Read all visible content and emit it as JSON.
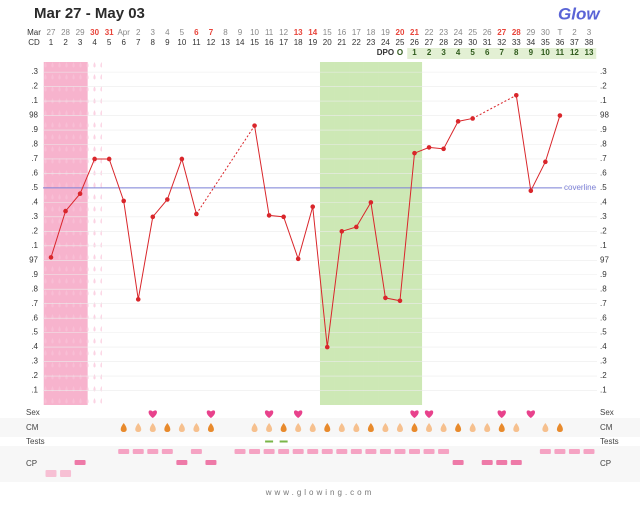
{
  "header": {
    "title": "Mar 27 - May 03",
    "logo": "Glow"
  },
  "chart_data": {
    "type": "line",
    "month_label": "Mar",
    "dates": [
      "27",
      "28",
      "29",
      "30",
      "31",
      "Apr",
      "2",
      "3",
      "4",
      "5",
      "6",
      "7",
      "8",
      "9",
      "10",
      "11",
      "12",
      "13",
      "14",
      "15",
      "16",
      "17",
      "18",
      "19",
      "20",
      "21",
      "22",
      "23",
      "24",
      "25",
      "26",
      "27",
      "28",
      "29",
      "30",
      "T",
      "2",
      "3"
    ],
    "weekend_color": "#e8443a",
    "weekend_index": [
      3,
      4,
      10,
      11,
      17,
      18,
      24,
      25,
      31,
      32
    ],
    "cd_label": "CD",
    "categories": [
      1,
      2,
      3,
      4,
      5,
      6,
      7,
      8,
      9,
      10,
      11,
      12,
      13,
      14,
      15,
      16,
      17,
      18,
      19,
      20,
      21,
      22,
      23,
      24,
      25,
      26,
      27,
      28,
      29,
      30,
      31,
      32,
      33,
      34,
      35,
      36,
      37,
      38
    ],
    "dpo_label": "DPO",
    "dpo": [
      null,
      null,
      null,
      null,
      null,
      null,
      null,
      null,
      null,
      null,
      null,
      null,
      null,
      null,
      null,
      null,
      null,
      null,
      null,
      null,
      null,
      null,
      null,
      null,
      "O",
      1,
      2,
      3,
      4,
      5,
      6,
      7,
      8,
      9,
      10,
      11,
      12,
      13
    ],
    "color": "#d9262b",
    "values": [
      97.02,
      97.34,
      97.46,
      97.7,
      97.7,
      97.41,
      96.73,
      97.3,
      97.42,
      97.7,
      97.32,
      null,
      null,
      null,
      97.93,
      97.31,
      97.3,
      97.01,
      97.37,
      96.4,
      97.2,
      97.23,
      97.4,
      96.74,
      96.72,
      97.74,
      97.78,
      97.77,
      97.96,
      97.98,
      null,
      null,
      98.14,
      97.48,
      97.68,
      98.0,
      null,
      null
    ],
    "ylim": [
      96,
      98.37
    ],
    "yticks": [
      {
        "value": 98.3,
        "label": ".3"
      },
      {
        "value": 98.2,
        "label": ".2"
      },
      {
        "value": 98.1,
        "label": ".1"
      },
      98,
      {
        "value": 97.9,
        "label": ".9"
      },
      {
        "value": 97.8,
        "label": ".8"
      },
      {
        "value": 97.7,
        "label": ".7"
      },
      {
        "value": 97.6,
        "label": ".6"
      },
      {
        "value": 97.5,
        "label": ".5"
      },
      {
        "value": 97.4,
        "label": ".4"
      },
      {
        "value": 97.3,
        "label": ".3"
      },
      {
        "value": 97.2,
        "label": ".2"
      },
      {
        "value": 97.1,
        "label": ".1"
      },
      97,
      {
        "value": 96.9,
        "label": ".9"
      },
      {
        "value": 96.8,
        "label": ".8"
      },
      {
        "value": 96.7,
        "label": ".7"
      },
      {
        "value": 96.6,
        "label": ".6"
      },
      {
        "value": 96.5,
        "label": ".5"
      },
      {
        "value": 96.4,
        "label": ".4"
      },
      {
        "value": 96.3,
        "label": ".3"
      },
      {
        "value": 96.2,
        "label": ".2"
      },
      {
        "value": 96.1,
        "label": ".1"
      }
    ],
    "coverline": 97.5,
    "coverline_label": "coverline",
    "coverline_color": "#7b7fd6",
    "period_days": [
      1,
      2,
      3
    ],
    "spotting_days": [
      4
    ],
    "fertile_days": [
      20,
      21,
      22,
      23,
      24,
      25,
      26
    ]
  },
  "logs": {
    "labels": {
      "sex": "Sex",
      "cm": "CM",
      "tests": "Tests",
      "cp": "CP"
    },
    "sex_days": [
      8,
      12,
      16,
      18,
      26,
      27,
      32,
      34
    ],
    "cm_days": [
      6,
      7,
      8,
      9,
      10,
      11,
      12,
      15,
      16,
      17,
      18,
      19,
      20,
      21,
      22,
      23,
      24,
      25,
      26,
      27,
      28,
      29,
      30,
      31,
      32,
      33,
      35,
      36
    ],
    "test_days": [
      16,
      17
    ],
    "cp_levels": [
      1,
      1,
      2,
      null,
      null,
      3,
      3,
      3,
      3,
      2,
      3,
      2,
      null,
      3,
      3,
      3,
      3,
      3,
      3,
      3,
      3,
      3,
      3,
      3,
      3,
      3,
      3,
      3,
      2,
      null,
      2,
      2,
      2,
      null,
      3,
      3,
      3,
      3
    ]
  },
  "footer": "www.glowing.com"
}
